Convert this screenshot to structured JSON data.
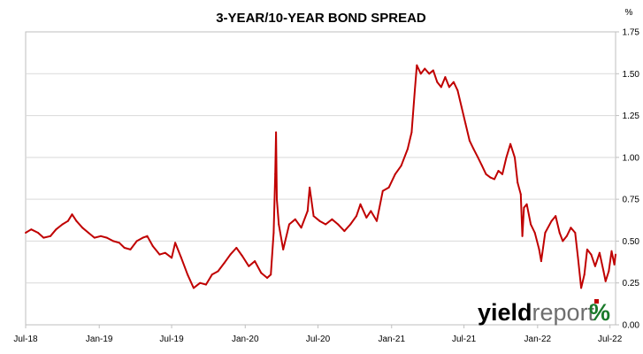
{
  "chart_data": {
    "type": "line",
    "title": "3-YEAR/10-YEAR BOND SPREAD",
    "ylabel": "%",
    "xlabel": "",
    "ylim": [
      0,
      1.75
    ],
    "y_ticks": [
      "0.00",
      "0.25",
      "0.50",
      "0.75",
      "1.00",
      "1.25",
      "1.50",
      "1.75"
    ],
    "y_tick_values": [
      0,
      0.25,
      0.5,
      0.75,
      1.0,
      1.25,
      1.5,
      1.75
    ],
    "x_range": [
      "2018-07-01",
      "2022-07-15"
    ],
    "x_ticks": [
      {
        "label": "Jul-18",
        "date": "2018-07-01"
      },
      {
        "label": "Jan-19",
        "date": "2019-01-01"
      },
      {
        "label": "Jul-19",
        "date": "2019-07-01"
      },
      {
        "label": "Jan-20",
        "date": "2020-01-01"
      },
      {
        "label": "Jul-20",
        "date": "2020-07-01"
      },
      {
        "label": "Jan-21",
        "date": "2021-01-01"
      },
      {
        "label": "Jul-21",
        "date": "2021-07-01"
      },
      {
        "label": "Jan-22",
        "date": "2022-01-01"
      },
      {
        "label": "Jul-22",
        "date": "2022-07-01"
      }
    ],
    "grid": "horizontal",
    "series": [
      {
        "color": "#c00000",
        "points": [
          [
            "2018-07-01",
            0.55
          ],
          [
            "2018-07-15",
            0.57
          ],
          [
            "2018-08-01",
            0.55
          ],
          [
            "2018-08-15",
            0.52
          ],
          [
            "2018-09-01",
            0.53
          ],
          [
            "2018-09-15",
            0.57
          ],
          [
            "2018-10-01",
            0.6
          ],
          [
            "2018-10-15",
            0.62
          ],
          [
            "2018-10-25",
            0.66
          ],
          [
            "2018-11-05",
            0.62
          ],
          [
            "2018-11-20",
            0.58
          ],
          [
            "2018-12-05",
            0.55
          ],
          [
            "2018-12-20",
            0.52
          ],
          [
            "2019-01-05",
            0.53
          ],
          [
            "2019-01-20",
            0.52
          ],
          [
            "2019-02-05",
            0.5
          ],
          [
            "2019-02-20",
            0.49
          ],
          [
            "2019-03-05",
            0.46
          ],
          [
            "2019-03-20",
            0.45
          ],
          [
            "2019-04-05",
            0.5
          ],
          [
            "2019-04-20",
            0.52
          ],
          [
            "2019-05-01",
            0.53
          ],
          [
            "2019-05-15",
            0.47
          ],
          [
            "2019-06-01",
            0.42
          ],
          [
            "2019-06-15",
            0.43
          ],
          [
            "2019-07-01",
            0.4
          ],
          [
            "2019-07-10",
            0.49
          ],
          [
            "2019-07-25",
            0.4
          ],
          [
            "2019-08-10",
            0.3
          ],
          [
            "2019-08-25",
            0.22
          ],
          [
            "2019-09-10",
            0.25
          ],
          [
            "2019-09-25",
            0.24
          ],
          [
            "2019-10-10",
            0.3
          ],
          [
            "2019-10-25",
            0.32
          ],
          [
            "2019-11-10",
            0.37
          ],
          [
            "2019-11-25",
            0.42
          ],
          [
            "2019-12-10",
            0.46
          ],
          [
            "2019-12-25",
            0.41
          ],
          [
            "2020-01-10",
            0.35
          ],
          [
            "2020-01-25",
            0.38
          ],
          [
            "2020-02-10",
            0.31
          ],
          [
            "2020-02-25",
            0.28
          ],
          [
            "2020-03-05",
            0.3
          ],
          [
            "2020-03-12",
            0.55
          ],
          [
            "2020-03-16",
            0.9
          ],
          [
            "2020-03-18",
            1.15
          ],
          [
            "2020-03-20",
            0.75
          ],
          [
            "2020-03-25",
            0.6
          ],
          [
            "2020-04-05",
            0.45
          ],
          [
            "2020-04-20",
            0.6
          ],
          [
            "2020-05-05",
            0.63
          ],
          [
            "2020-05-20",
            0.58
          ],
          [
            "2020-06-05",
            0.68
          ],
          [
            "2020-06-10",
            0.82
          ],
          [
            "2020-06-20",
            0.65
          ],
          [
            "2020-07-05",
            0.62
          ],
          [
            "2020-07-20",
            0.6
          ],
          [
            "2020-08-05",
            0.63
          ],
          [
            "2020-08-20",
            0.6
          ],
          [
            "2020-09-05",
            0.56
          ],
          [
            "2020-09-20",
            0.6
          ],
          [
            "2020-10-05",
            0.65
          ],
          [
            "2020-10-15",
            0.72
          ],
          [
            "2020-10-30",
            0.64
          ],
          [
            "2020-11-10",
            0.68
          ],
          [
            "2020-11-25",
            0.62
          ],
          [
            "2020-12-10",
            0.8
          ],
          [
            "2020-12-25",
            0.82
          ],
          [
            "2021-01-10",
            0.9
          ],
          [
            "2021-01-25",
            0.95
          ],
          [
            "2021-02-10",
            1.05
          ],
          [
            "2021-02-20",
            1.15
          ],
          [
            "2021-02-28",
            1.4
          ],
          [
            "2021-03-05",
            1.55
          ],
          [
            "2021-03-15",
            1.5
          ],
          [
            "2021-03-25",
            1.53
          ],
          [
            "2021-04-05",
            1.5
          ],
          [
            "2021-04-15",
            1.52
          ],
          [
            "2021-04-25",
            1.45
          ],
          [
            "2021-05-05",
            1.42
          ],
          [
            "2021-05-15",
            1.48
          ],
          [
            "2021-05-25",
            1.42
          ],
          [
            "2021-06-05",
            1.45
          ],
          [
            "2021-06-15",
            1.4
          ],
          [
            "2021-06-25",
            1.3
          ],
          [
            "2021-07-05",
            1.2
          ],
          [
            "2021-07-15",
            1.1
          ],
          [
            "2021-07-25",
            1.05
          ],
          [
            "2021-08-05",
            1.0
          ],
          [
            "2021-08-15",
            0.95
          ],
          [
            "2021-08-25",
            0.9
          ],
          [
            "2021-09-05",
            0.88
          ],
          [
            "2021-09-15",
            0.87
          ],
          [
            "2021-09-25",
            0.92
          ],
          [
            "2021-10-05",
            0.9
          ],
          [
            "2021-10-15",
            1.0
          ],
          [
            "2021-10-25",
            1.08
          ],
          [
            "2021-11-05",
            1.0
          ],
          [
            "2021-11-12",
            0.85
          ],
          [
            "2021-11-20",
            0.78
          ],
          [
            "2021-11-24",
            0.53
          ],
          [
            "2021-11-28",
            0.7
          ],
          [
            "2021-12-05",
            0.72
          ],
          [
            "2021-12-15",
            0.6
          ],
          [
            "2021-12-25",
            0.55
          ],
          [
            "2022-01-05",
            0.45
          ],
          [
            "2022-01-10",
            0.38
          ],
          [
            "2022-01-20",
            0.55
          ],
          [
            "2022-02-05",
            0.62
          ],
          [
            "2022-02-15",
            0.65
          ],
          [
            "2022-02-25",
            0.55
          ],
          [
            "2022-03-05",
            0.5
          ],
          [
            "2022-03-15",
            0.53
          ],
          [
            "2022-03-25",
            0.58
          ],
          [
            "2022-04-05",
            0.55
          ],
          [
            "2022-04-12",
            0.4
          ],
          [
            "2022-04-20",
            0.22
          ],
          [
            "2022-04-28",
            0.3
          ],
          [
            "2022-05-05",
            0.45
          ],
          [
            "2022-05-15",
            0.42
          ],
          [
            "2022-05-25",
            0.35
          ],
          [
            "2022-06-05",
            0.43
          ],
          [
            "2022-06-15",
            0.32
          ],
          [
            "2022-06-20",
            0.26
          ],
          [
            "2022-06-28",
            0.32
          ],
          [
            "2022-07-05",
            0.44
          ],
          [
            "2022-07-12",
            0.36
          ],
          [
            "2022-07-15",
            0.42
          ]
        ]
      }
    ]
  },
  "watermark": {
    "text_a": "yield",
    "text_b": "report",
    "symbol": "%",
    "color_a": "#000000",
    "color_b": "#6e6e6e",
    "symbol_color": "#1a7a2a",
    "accent_color": "#c00000"
  }
}
